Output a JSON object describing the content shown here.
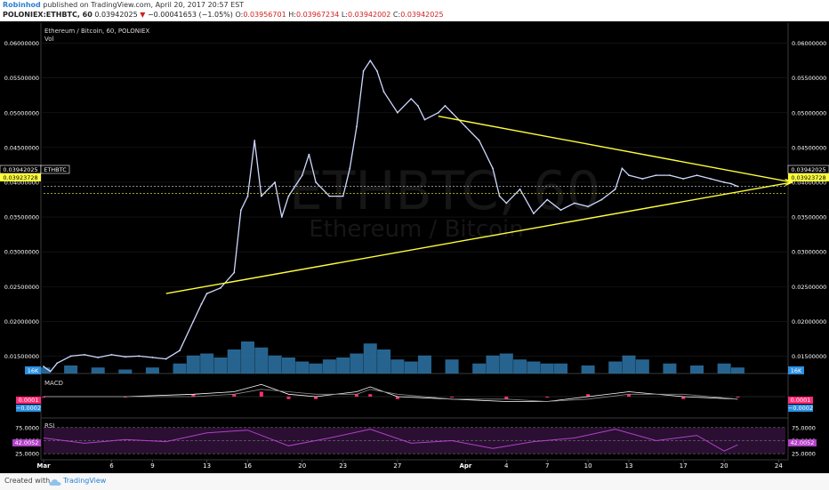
{
  "header": {
    "author": "Robinhod",
    "published_text": " published on TradingView.com, April 20, 2017 20:57 EST",
    "symbol": "POLONIEX:ETHBTC, 60",
    "last_price": "0.03942025",
    "change_arrow": "▼",
    "change": "−0.00041653 (−1.05%)",
    "open_label": "O:",
    "open_value": "0.03956701",
    "high_label": "H:",
    "high_value": "0.03967234",
    "low_label": "L:",
    "low_value": "0.03942002",
    "close_label": "C:",
    "close_value": "0.03942025"
  },
  "legend": {
    "title": "Ethereum / Bitcoin, 60, POLONIEX",
    "vol_label": "Vol",
    "macd_label": "MACD",
    "rsi_label": "RSI"
  },
  "watermark": {
    "symbol": "ETHBTC, 60",
    "name": "Ethereum / Bitcoin"
  },
  "badges": {
    "last_price": "0.03942025",
    "symbol": "ETHBTC",
    "second_price": "0.03923728",
    "volume": "16K",
    "macd_top": "0.0001",
    "macd_bottom": "−0.0002",
    "rsi_value": "42.0052"
  },
  "footer": {
    "created_with": "Created with",
    "brand": "TradingView"
  },
  "colors": {
    "background": "#000000",
    "price_line": "#cfd9ff",
    "trend_line": "#ffff3d",
    "volume": "#2a6f9e",
    "macd_hist": "#ff2d78",
    "rsi": "#b440c8",
    "badge_yellow": "#ffff3d",
    "badge_blue": "#2c8fe0",
    "badge_pink": "#ff2d78"
  },
  "chart_data": [
    {
      "type": "line",
      "title": "Ethereum / Bitcoin, 60, POLONIEX",
      "xlabel": "",
      "ylabel": "",
      "ylim": [
        0.0125,
        0.0625
      ],
      "y_ticks": [
        0.06,
        0.055,
        0.05,
        0.045,
        0.04,
        0.035,
        0.03,
        0.025,
        0.02,
        0.015
      ],
      "y_tick_labels": [
        "0.06000000",
        "0.05500000",
        "0.05000000",
        "0.04500000",
        "0.04000000",
        "0.03500000",
        "0.03000000",
        "0.02500000",
        "0.02000000",
        "0.01500000"
      ],
      "x_ticks": [
        "Mar",
        "6",
        "9",
        "13",
        "16",
        "20",
        "23",
        "27",
        "Apr",
        "4",
        "7",
        "10",
        "13",
        "17",
        "20",
        "24"
      ],
      "x_tick_days": [
        0,
        5,
        8,
        12,
        15,
        19,
        22,
        26,
        31,
        34,
        37,
        40,
        43,
        47,
        50,
        54
      ],
      "series": [
        {
          "x": [
            0,
            0.5,
            1,
            2,
            3,
            4,
            5,
            6,
            7,
            8,
            9,
            10,
            11,
            11.6,
            12,
            13,
            14,
            14.5,
            15,
            15.5,
            16,
            17,
            17.5,
            18,
            19,
            19.5,
            20,
            21,
            22,
            22.5,
            23,
            23.5,
            24,
            24.5,
            25,
            26,
            27,
            27.5,
            28,
            29,
            29.5,
            30,
            31,
            32,
            33,
            33.5,
            34,
            35,
            36,
            37,
            38,
            39,
            40,
            41,
            42,
            42.5,
            43,
            44,
            45,
            46,
            47,
            48,
            49,
            50,
            50.5,
            51
          ],
          "y": [
            0.0135,
            0.0128,
            0.014,
            0.015,
            0.0152,
            0.0148,
            0.0152,
            0.0149,
            0.015,
            0.0148,
            0.0146,
            0.0158,
            0.02,
            0.0225,
            0.024,
            0.0248,
            0.027,
            0.036,
            0.038,
            0.046,
            0.038,
            0.04,
            0.035,
            0.038,
            0.041,
            0.044,
            0.04,
            0.038,
            0.038,
            0.042,
            0.048,
            0.056,
            0.0575,
            0.056,
            0.053,
            0.05,
            0.052,
            0.051,
            0.049,
            0.05,
            0.051,
            0.05,
            0.048,
            0.046,
            0.042,
            0.038,
            0.037,
            0.039,
            0.0355,
            0.0375,
            0.036,
            0.037,
            0.0365,
            0.0375,
            0.039,
            0.042,
            0.041,
            0.0405,
            0.041,
            0.041,
            0.0405,
            0.041,
            0.0405,
            0.04,
            0.0398,
            0.0394
          ]
        }
      ],
      "trend_lines": [
        {
          "x": [
            9,
            55
          ],
          "y": [
            0.024,
            0.04
          ]
        },
        {
          "x": [
            29,
            55
          ],
          "y": [
            0.0495,
            0.04
          ]
        }
      ],
      "last_value": 0.03942025
    },
    {
      "type": "bar",
      "title": "Vol",
      "x": [
        0,
        2,
        4,
        6,
        8,
        10,
        11,
        12,
        13,
        14,
        15,
        16,
        17,
        18,
        19,
        20,
        21,
        22,
        23,
        24,
        25,
        26,
        27,
        28,
        30,
        32,
        33,
        34,
        35,
        36,
        37,
        38,
        40,
        42,
        43,
        44,
        46,
        48,
        50,
        51
      ],
      "values": [
        3,
        4,
        3,
        2,
        3,
        5,
        9,
        10,
        8,
        12,
        16,
        13,
        9,
        8,
        6,
        5,
        7,
        8,
        10,
        15,
        12,
        7,
        6,
        9,
        7,
        5,
        9,
        10,
        7,
        6,
        5,
        5,
        4,
        6,
        9,
        7,
        5,
        4,
        5,
        3
      ]
    },
    {
      "type": "line",
      "title": "MACD",
      "ylim": [
        -0.0008,
        0.0008
      ],
      "series": [
        {
          "name": "MACD",
          "x": [
            0,
            6,
            11,
            14,
            16,
            18,
            20,
            23,
            24,
            26,
            30,
            34,
            37,
            40,
            43,
            47,
            51
          ],
          "y": [
            0,
            0,
            0.0001,
            0.0002,
            0.0005,
            0.0001,
            0.0,
            0.0002,
            0.0004,
            0.0,
            -0.0001,
            -0.0002,
            -0.0002,
            0.0,
            0.0002,
            0.0,
            -0.0001
          ]
        },
        {
          "name": "Signal",
          "x": [
            0,
            6,
            11,
            14,
            16,
            18,
            20,
            23,
            24,
            26,
            30,
            34,
            37,
            40,
            43,
            47,
            51
          ],
          "y": [
            0,
            0,
            0.0,
            0.0001,
            0.0003,
            0.0002,
            0.0001,
            0.0001,
            0.0003,
            0.0001,
            -0.0001,
            -0.0001,
            -0.0002,
            -0.0001,
            0.0001,
            0.0001,
            -0.0001
          ]
        }
      ],
      "last_values": [
        0.0001,
        -0.0002
      ]
    },
    {
      "type": "line",
      "title": "RSI",
      "ylim": [
        15,
        90
      ],
      "y_ticks": [
        75,
        50,
        25
      ],
      "y_tick_labels": [
        "75.0000",
        "50.0000",
        "25.0000"
      ],
      "series": [
        {
          "name": "RSI",
          "x": [
            0,
            3,
            6,
            9,
            12,
            15,
            18,
            21,
            24,
            27,
            30,
            33,
            36,
            39,
            42,
            45,
            48,
            50,
            51
          ],
          "y": [
            55,
            45,
            52,
            48,
            65,
            70,
            40,
            55,
            72,
            45,
            50,
            35,
            48,
            55,
            72,
            50,
            60,
            30,
            42
          ]
        }
      ],
      "last_value": 42.0052
    }
  ]
}
